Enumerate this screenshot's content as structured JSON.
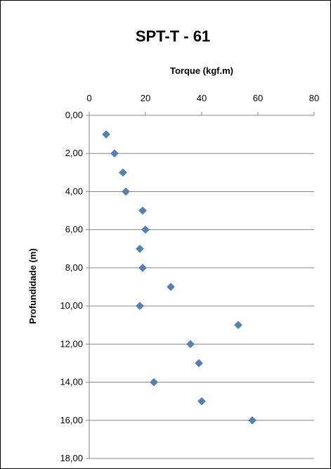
{
  "chart_data": {
    "type": "scatter",
    "title": "SPT-T - 61",
    "xlabel": "Torque (kgf.m)",
    "ylabel": "Profundidade (m)",
    "xlim": [
      0,
      80
    ],
    "ylim": [
      0,
      18
    ],
    "y_reversed": true,
    "x_axis_position": "top",
    "x_ticks": [
      "0",
      "20",
      "40",
      "60",
      "80"
    ],
    "y_ticks": [
      "0,00",
      "2,00",
      "4,00",
      "6,00",
      "8,00",
      "10,00",
      "12,00",
      "14,00",
      "16,00",
      "18,00"
    ],
    "grid": "horizontal",
    "marker": "diamond",
    "colors": {
      "marker": "#4f81bd",
      "grid": "#868686",
      "axis": "#868686"
    },
    "points": [
      {
        "x": 6,
        "y": 1
      },
      {
        "x": 9,
        "y": 2
      },
      {
        "x": 12,
        "y": 3
      },
      {
        "x": 13,
        "y": 4
      },
      {
        "x": 19,
        "y": 5
      },
      {
        "x": 20,
        "y": 6
      },
      {
        "x": 18,
        "y": 7
      },
      {
        "x": 19,
        "y": 8
      },
      {
        "x": 29,
        "y": 9
      },
      {
        "x": 18,
        "y": 10
      },
      {
        "x": 53,
        "y": 11
      },
      {
        "x": 36,
        "y": 12
      },
      {
        "x": 39,
        "y": 13
      },
      {
        "x": 23,
        "y": 14
      },
      {
        "x": 40,
        "y": 15
      },
      {
        "x": 58,
        "y": 16
      }
    ]
  }
}
